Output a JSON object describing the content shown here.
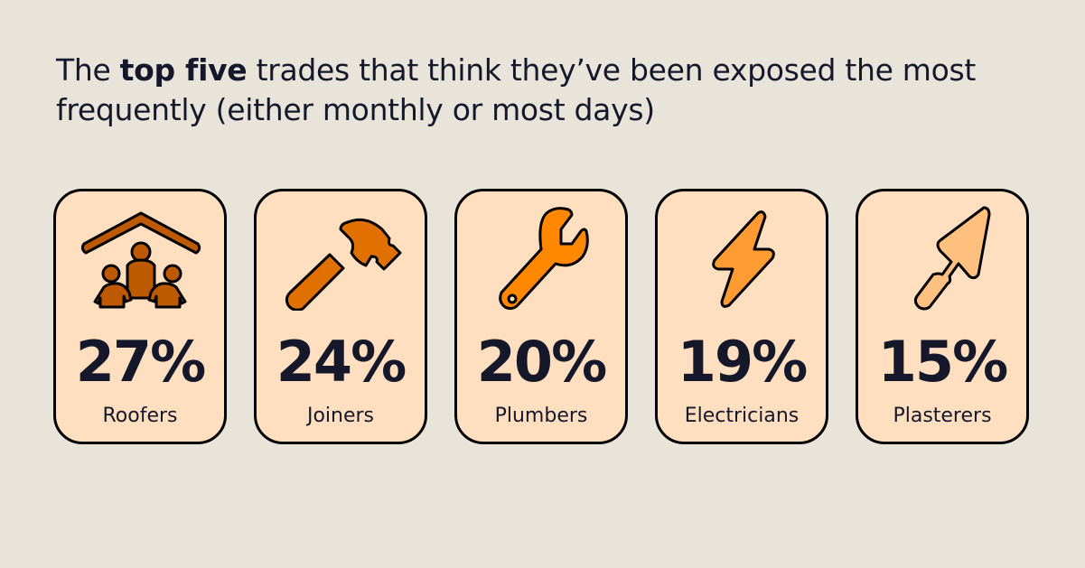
{
  "headline": {
    "prefix": "The ",
    "bold": "top five",
    "suffix": " trades that think they’ve been exposed the most frequently (either monthly or most days)"
  },
  "trades": [
    {
      "value": "27%",
      "label": "Roofers",
      "icon": "house-people-icon",
      "color": "#bd5a00"
    },
    {
      "value": "24%",
      "label": "Joiners",
      "icon": "hammer-icon",
      "color": "#e07000"
    },
    {
      "value": "20%",
      "label": "Plumbers",
      "icon": "wrench-icon",
      "color": "#ff8800"
    },
    {
      "value": "19%",
      "label": "Electricians",
      "icon": "lightning-bolt-icon",
      "color": "#ff9b33"
    },
    {
      "value": "15%",
      "label": "Plasterers",
      "icon": "trowel-icon",
      "color": "#ffc080"
    }
  ],
  "colors": {
    "background": "#e8e4da",
    "card": "#ffdfbf",
    "text": "#15172b"
  }
}
